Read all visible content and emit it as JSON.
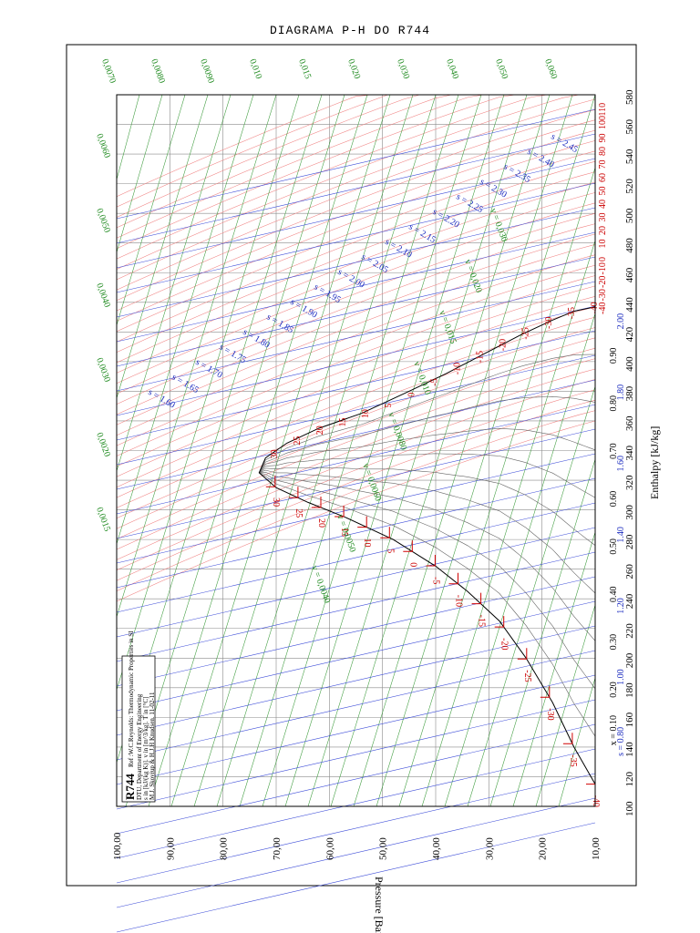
{
  "page": {
    "title": "DIAGRAMA P-H DO R744"
  },
  "chart_data": {
    "type": "line",
    "title": "DIAGRAMA P-H DO R744",
    "xlabel": "Enthalpy [kJ/kg]",
    "ylabel": "Pressure [Bar]",
    "x_axis": {
      "min": 100,
      "max": 580,
      "step": 20,
      "ticks": [
        "100",
        "120",
        "140",
        "160",
        "180",
        "200",
        "220",
        "240",
        "260",
        "280",
        "300",
        "320",
        "340",
        "360",
        "380",
        "400",
        "420",
        "440",
        "460",
        "480",
        "500",
        "520",
        "540",
        "560",
        "580"
      ]
    },
    "y_axis": {
      "min": 10,
      "max": 100,
      "step": 10,
      "ticks": [
        "10,00",
        "20,00",
        "30,00",
        "40,00",
        "50,00",
        "60,00",
        "70,00",
        "80,00",
        "90,00",
        "100,00"
      ]
    },
    "grid": true,
    "saturation_dome": {
      "liquid": [
        [
          115,
          10
        ],
        [
          140,
          14
        ],
        [
          170,
          18
        ],
        [
          200,
          23
        ],
        [
          225,
          28
        ],
        [
          245,
          34
        ],
        [
          262,
          40
        ],
        [
          280,
          48
        ],
        [
          295,
          57
        ],
        [
          305,
          64
        ],
        [
          315,
          70
        ],
        [
          325,
          73.2
        ]
      ],
      "vapor": [
        [
          325,
          73.2
        ],
        [
          335,
          72
        ],
        [
          345,
          68
        ],
        [
          355,
          62
        ],
        [
          365,
          54
        ],
        [
          380,
          45
        ],
        [
          392,
          38
        ],
        [
          405,
          31
        ],
        [
          418,
          24
        ],
        [
          428,
          18
        ],
        [
          434,
          14
        ],
        [
          437,
          10
        ]
      ]
    },
    "quality_lines": [
      {
        "x": 0.1,
        "label": "x = 0.10"
      },
      {
        "x": 0.2,
        "label": "0.20"
      },
      {
        "x": 0.3,
        "label": "0.30"
      },
      {
        "x": 0.4,
        "label": "0.40"
      },
      {
        "x": 0.5,
        "label": "0.50"
      },
      {
        "x": 0.6,
        "label": "0.60"
      },
      {
        "x": 0.7,
        "label": "0.70"
      },
      {
        "x": 0.8,
        "label": "0.80"
      },
      {
        "x": 0.9,
        "label": "0.90"
      }
    ],
    "entropy_bottom_labels": [
      "s = 0.80",
      "1.00",
      "1.20",
      "1.40",
      "1.60",
      "1.80",
      "2.00"
    ],
    "entropy_lines": [
      {
        "s": 1.6,
        "label": "s = 1.60"
      },
      {
        "s": 1.65,
        "label": "s = 1.65"
      },
      {
        "s": 1.7,
        "label": "s = 1.70"
      },
      {
        "s": 1.75,
        "label": "s = 1.75"
      },
      {
        "s": 1.8,
        "label": "s = 1.80"
      },
      {
        "s": 1.85,
        "label": "s = 1.85"
      },
      {
        "s": 1.9,
        "label": "s = 1.90"
      },
      {
        "s": 1.95,
        "label": "s = 1.95"
      },
      {
        "s": 2.0,
        "label": "s = 2.00"
      },
      {
        "s": 2.05,
        "label": "s = 2.05"
      },
      {
        "s": 2.1,
        "label": "s = 2.10"
      },
      {
        "s": 2.15,
        "label": "s = 2.15"
      },
      {
        "s": 2.2,
        "label": "s = 2.20"
      },
      {
        "s": 2.25,
        "label": "s = 2.25"
      },
      {
        "s": 2.3,
        "label": "s = 2.30"
      },
      {
        "s": 2.35,
        "label": "s = 2.35"
      },
      {
        "s": 2.4,
        "label": "s = 2.40"
      },
      {
        "s": 2.45,
        "label": "s = 2.45"
      }
    ],
    "volume_top_labels": [
      "0,0070",
      "0,0080",
      "0,0090",
      "0,010",
      "0,015",
      "0,020",
      "0,030",
      "0,040",
      "0,050",
      "0,060"
    ],
    "volume_left_labels": [
      "0,0060",
      "0,0050",
      "0,0040",
      "0,0030",
      "0,0020",
      "0,0015"
    ],
    "volume_inner_labels": [
      "v = 0,0040",
      "v = 0,0050",
      "v = 0,0060",
      "v = 0,0080",
      "v = 0,010",
      "v = 0,015",
      "v = 0,020",
      "v = 0,030"
    ],
    "temp_right_labels": [
      "-40",
      "-30",
      "-20",
      "-10",
      "0",
      "10",
      "20",
      "30",
      "40",
      "50",
      "60",
      "70",
      "80",
      "90",
      "100",
      "110"
    ],
    "temp_saturation_labels": [
      "-40",
      "-35",
      "-30",
      "-25",
      "-20",
      "-15",
      "-10",
      "-5",
      "0",
      "5",
      "10",
      "15",
      "20",
      "25",
      "30"
    ],
    "temp_vapor_labels": [
      "-40",
      "-35",
      "-30",
      "-25",
      "-20",
      "-15",
      "-10",
      "-5",
      "0",
      "5",
      "10",
      "15",
      "20",
      "25",
      "30"
    ],
    "colors": {
      "isotherm": "#f08080",
      "isentrope": "#3b4bd8",
      "isochore": "#3a9a3a",
      "quality": "#666666",
      "dome": "#000000"
    }
  },
  "infobox": {
    "refrigerant": "R744",
    "line1": "Ref :W.C.Reynolds: Thermodynamic Properties in SI",
    "line2": "DTU, Department of Energy Engineering",
    "line3": "s in [kJ/(kg K)]. v in [m^3/kg]. T in [°C]",
    "line4": "M.J. Skovrup & H.J.H Knudsen. 11-02-11"
  }
}
